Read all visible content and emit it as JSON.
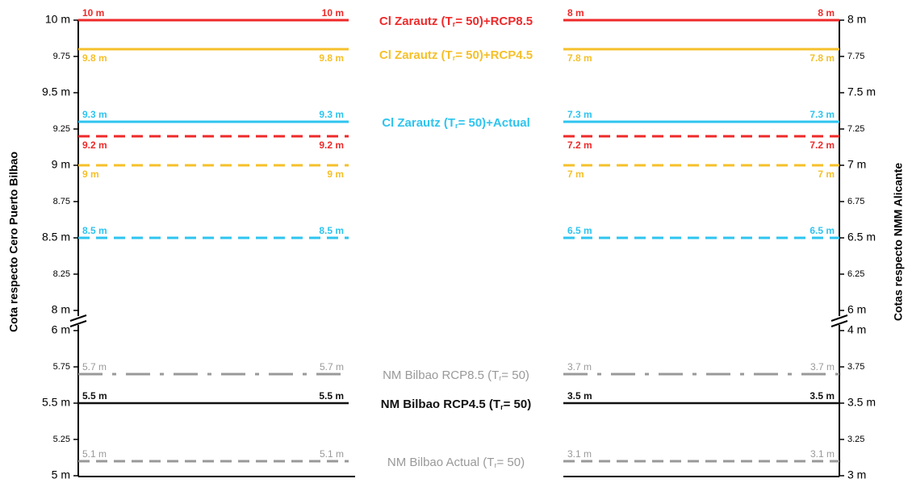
{
  "left_axis": {
    "title": "Cota respecto Cero Puerto Bilbao",
    "upper_ticks": [
      "10 m",
      "9.75",
      "9.5 m",
      "9.25",
      "9 m",
      "8.75",
      "8.5 m",
      "8.25",
      "8 m"
    ],
    "lower_ticks": [
      "6 m",
      "5.75",
      "5.5 m",
      "5.25",
      "5 m"
    ]
  },
  "right_axis": {
    "title": "Cotas respecto NMM Alicante",
    "upper_ticks": [
      "8 m",
      "7.75",
      "7.5 m",
      "7.25",
      "7 m",
      "6.75",
      "6.5 m",
      "6.25",
      "6 m"
    ],
    "lower_ticks": [
      "4 m",
      "3.75",
      "3.5 m",
      "3.25",
      "3 m"
    ]
  },
  "levels": [
    {
      "label_parts": [
        "Cl Zarautz (T",
        "r",
        "= 50)+RCP8.5"
      ],
      "left_value": "10 m",
      "right_value": "8 m",
      "color": "#ee2a2a",
      "style": "solid"
    },
    {
      "label_parts": [
        "Cl Zarautz (T",
        "r",
        "= 50)+RCP4.5"
      ],
      "left_value": "9.8 m",
      "right_value": "7.8 m",
      "color": "#f5c02a",
      "style": "solid"
    },
    {
      "label_parts": [
        "Cl Zarautz (T",
        "r",
        "= 50)+Actual"
      ],
      "left_value": "9.3 m",
      "right_value": "7.3 m",
      "color": "#2ec4ef",
      "style": "solid"
    },
    {
      "left_value": "9.2 m",
      "right_value": "7.2 m",
      "color": "#ee2a2a",
      "style": "dashed"
    },
    {
      "left_value": "9 m",
      "right_value": "7 m",
      "color": "#f5c02a",
      "style": "dashed"
    },
    {
      "left_value": "8.5 m",
      "right_value": "6.5 m",
      "color": "#2ec4ef",
      "style": "dashed"
    },
    {
      "label_parts": [
        "NM Bilbao RCP8.5 (T",
        "r",
        "= 50)"
      ],
      "left_value": "5.7 m",
      "right_value": "3.7 m",
      "color": "#999999",
      "style": "dashdot"
    },
    {
      "label_parts": [
        "NM Bilbao RCP4.5 (T",
        "r",
        "= 50)"
      ],
      "left_value": "5.5 m",
      "right_value": "3.5 m",
      "color": "#111111",
      "style": "solid"
    },
    {
      "label_parts": [
        "NM Bilbao Actual (T",
        "r",
        "= 50)"
      ],
      "left_value": "5.1 m",
      "right_value": "3.1 m",
      "color": "#999999",
      "style": "dashed"
    }
  ]
}
